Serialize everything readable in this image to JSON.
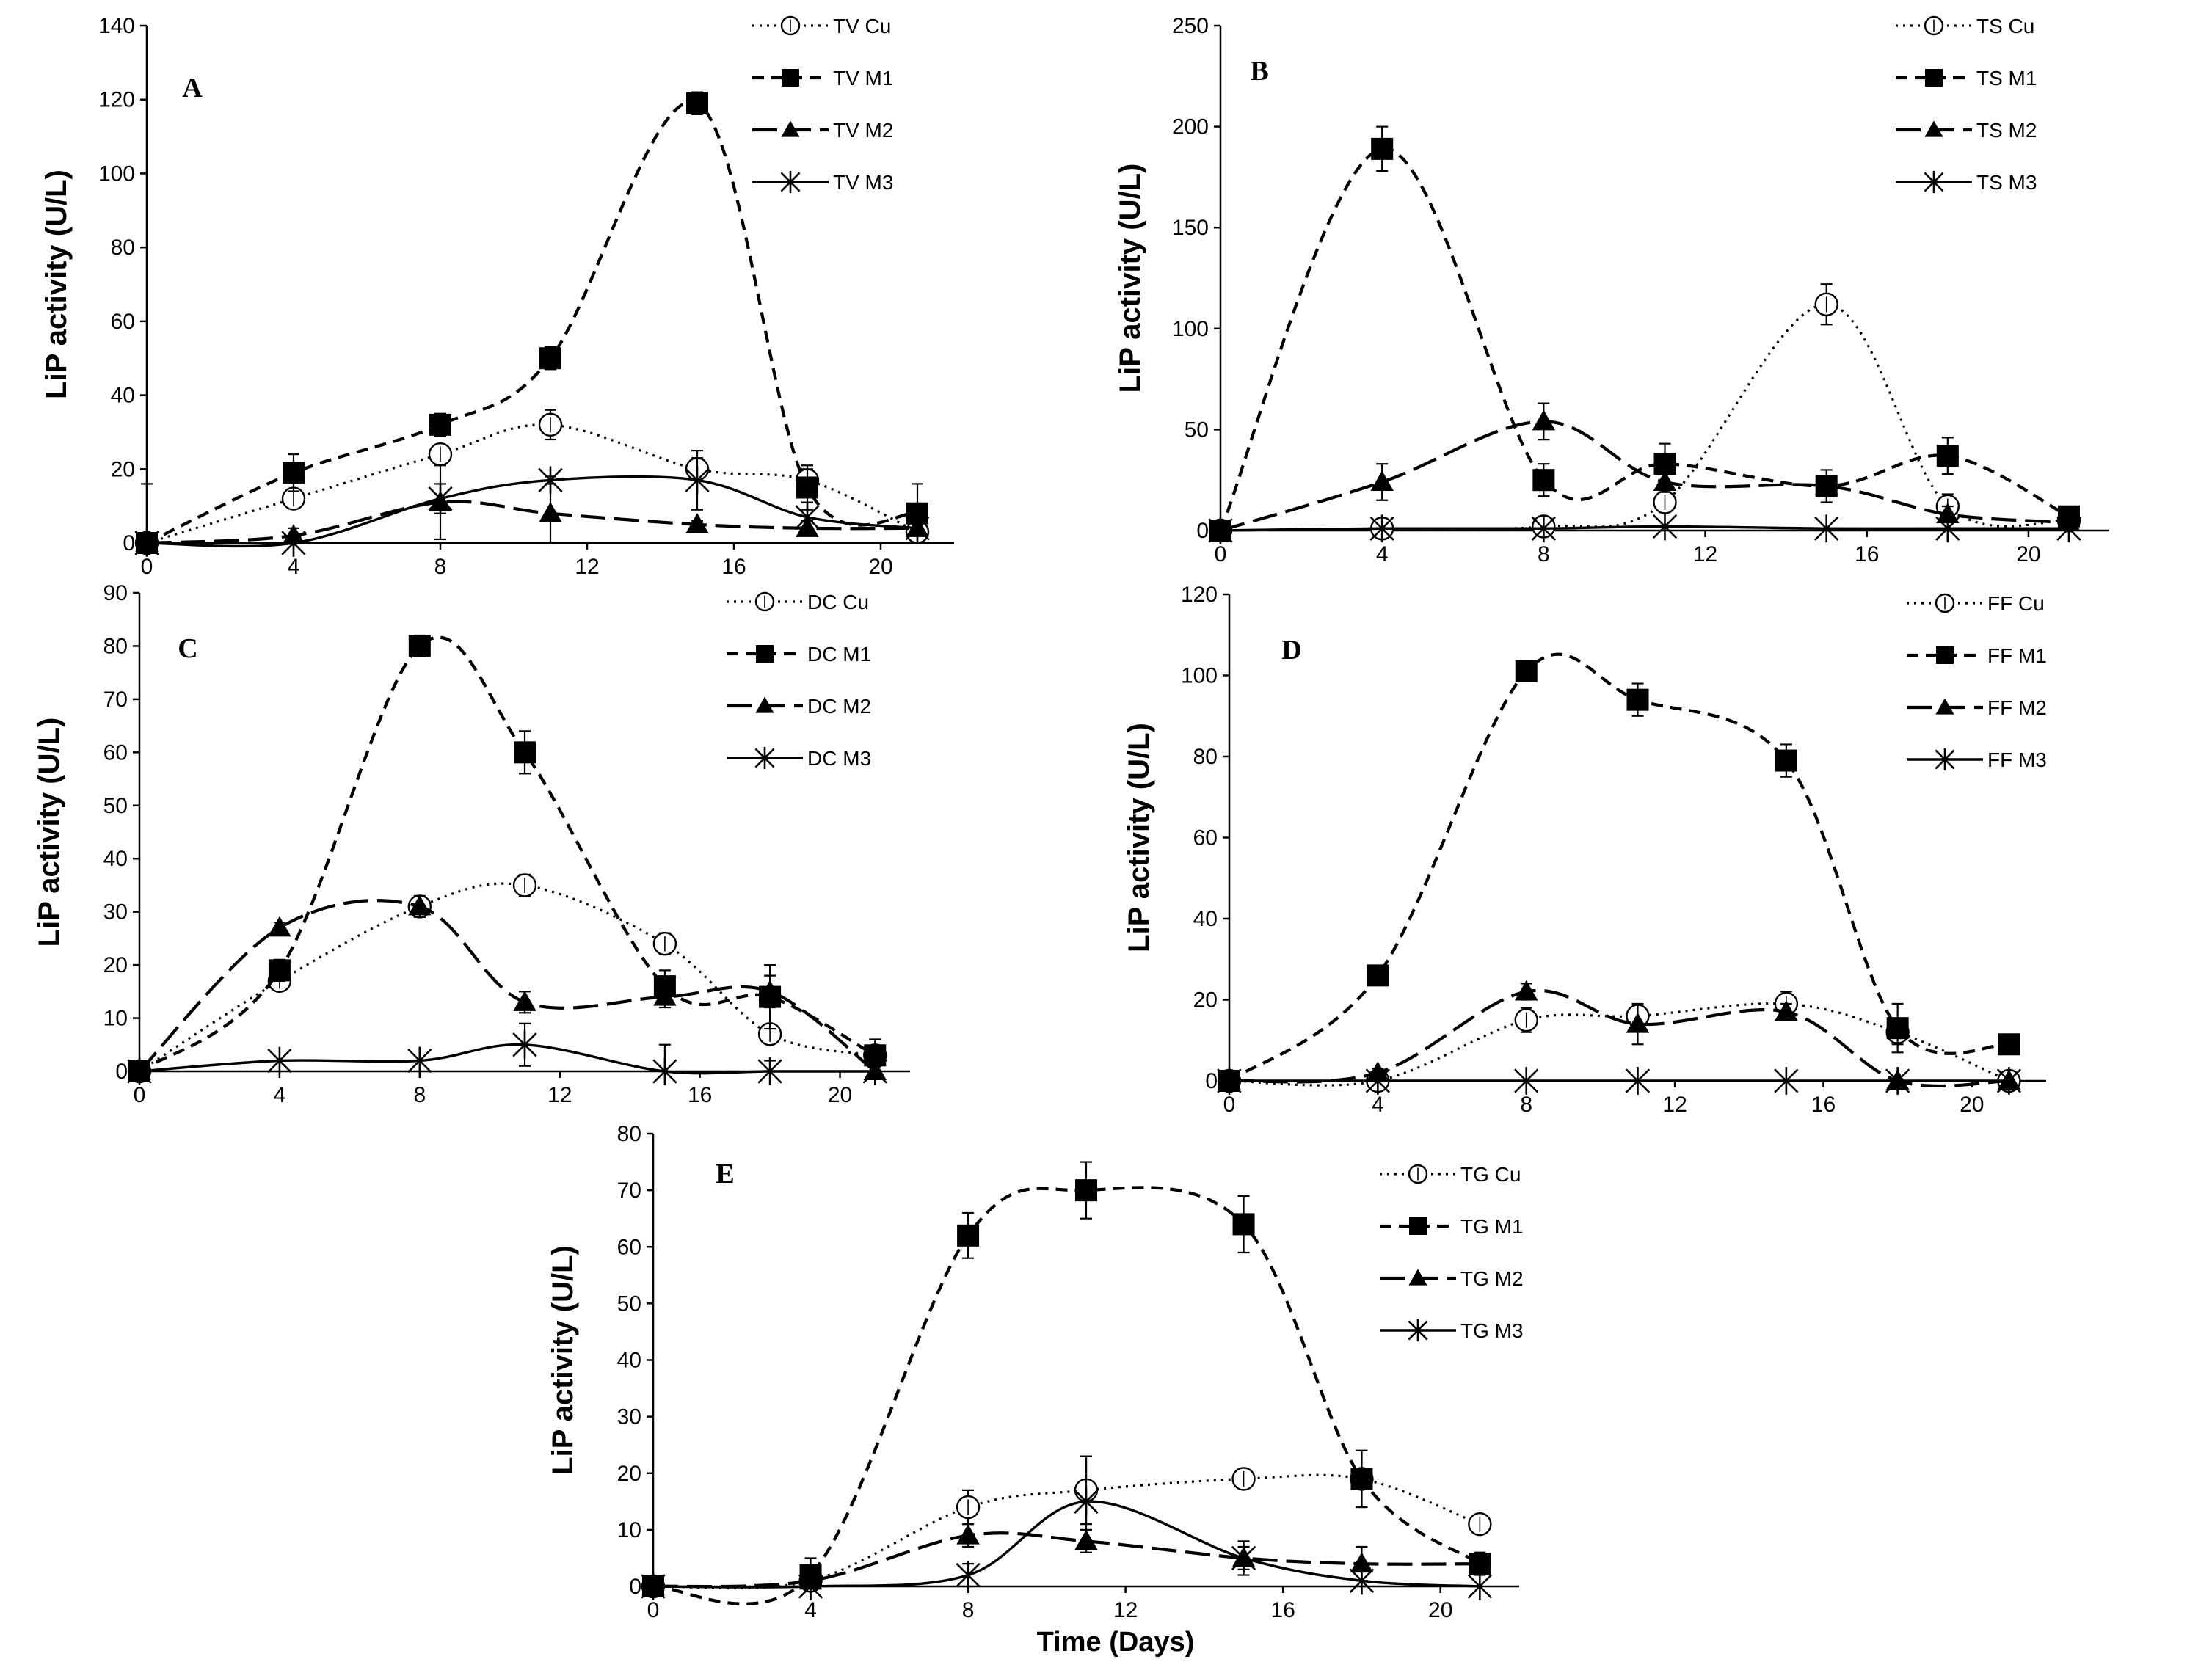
{
  "figure": {
    "x_axis_title": "Time (Days)"
  },
  "chart_data": [
    {
      "type": "line",
      "title": "A",
      "xlabel": "",
      "ylabel": "LiP activity (U/L)",
      "xlim": [
        0,
        22
      ],
      "ylim": [
        0,
        140
      ],
      "x_ticks": [
        0,
        4,
        8,
        12,
        16,
        20
      ],
      "y_ticks": [
        0,
        20,
        40,
        60,
        80,
        100,
        120,
        140
      ],
      "legend_position": "top-right",
      "x": [
        0,
        4,
        8,
        11,
        15,
        18,
        21
      ],
      "series": [
        {
          "name": "TV Cu",
          "values": [
            0,
            12,
            24,
            32,
            20,
            17,
            3
          ],
          "errors": [
            0,
            2,
            2,
            4,
            3,
            3,
            1
          ]
        },
        {
          "name": "TV M1",
          "values": [
            0,
            19,
            32,
            50,
            119,
            15,
            8
          ],
          "errors": [
            16,
            5,
            3,
            3,
            3,
            6,
            8
          ]
        },
        {
          "name": "TV M2",
          "values": [
            0,
            2,
            11,
            8,
            5,
            4,
            4
          ],
          "errors": [
            0,
            2,
            10,
            8,
            1,
            2,
            1
          ]
        },
        {
          "name": "TV M3",
          "values": [
            0,
            0,
            12,
            17,
            17,
            7,
            4
          ],
          "errors": [
            0,
            0,
            4,
            1,
            8,
            4,
            1
          ]
        }
      ]
    },
    {
      "type": "line",
      "title": "B",
      "xlabel": "",
      "ylabel": "LiP activity (U/L)",
      "xlim": [
        0,
        22
      ],
      "ylim": [
        0,
        250
      ],
      "x_ticks": [
        0,
        4,
        8,
        12,
        16,
        20
      ],
      "y_ticks": [
        0,
        50,
        100,
        150,
        200,
        250
      ],
      "legend_position": "top-right",
      "x": [
        0,
        4,
        8,
        11,
        15,
        18,
        21
      ],
      "series": [
        {
          "name": "TS Cu",
          "values": [
            0,
            1,
            2,
            14,
            112,
            12,
            5
          ],
          "errors": [
            0,
            1,
            2,
            5,
            10,
            6,
            2
          ]
        },
        {
          "name": "TS M1",
          "values": [
            0,
            189,
            25,
            33,
            22,
            37,
            7
          ],
          "errors": [
            0,
            11,
            8,
            10,
            8,
            9,
            3
          ]
        },
        {
          "name": "TS M2",
          "values": [
            0,
            24,
            54,
            24,
            22,
            8,
            4
          ],
          "errors": [
            0,
            9,
            9,
            5,
            4,
            4,
            2
          ]
        },
        {
          "name": "TS M3",
          "values": [
            0,
            1,
            1,
            2,
            1,
            1,
            1
          ],
          "errors": [
            0,
            0,
            0,
            0,
            0,
            0,
            0
          ]
        }
      ]
    },
    {
      "type": "line",
      "title": "C",
      "xlabel": "",
      "ylabel": "LiP activity (U/L)",
      "xlim": [
        0,
        22
      ],
      "ylim": [
        0,
        90
      ],
      "x_ticks": [
        0,
        4,
        8,
        12,
        16,
        20
      ],
      "y_ticks": [
        0,
        10,
        20,
        30,
        40,
        50,
        60,
        70,
        80,
        90
      ],
      "legend_position": "top-right",
      "x": [
        0,
        4,
        8,
        11,
        15,
        18,
        21
      ],
      "series": [
        {
          "name": "DC Cu",
          "values": [
            0,
            17,
            31,
            35,
            24,
            7,
            3
          ],
          "errors": [
            0,
            1,
            2,
            2,
            2,
            1,
            1
          ]
        },
        {
          "name": "DC M1",
          "values": [
            0,
            19,
            80,
            60,
            16,
            14,
            3
          ],
          "errors": [
            0,
            2,
            2,
            4,
            3,
            6,
            3
          ]
        },
        {
          "name": "DC M2",
          "values": [
            0,
            27,
            31,
            13,
            14,
            15,
            0
          ],
          "errors": [
            0,
            1,
            2,
            2,
            2,
            3,
            1
          ]
        },
        {
          "name": "DC M3",
          "values": [
            0,
            2,
            2,
            5,
            0,
            0,
            0
          ],
          "errors": [
            0,
            0,
            0,
            4,
            5,
            2,
            0
          ]
        }
      ]
    },
    {
      "type": "line",
      "title": "D",
      "xlabel": "",
      "ylabel": "LiP activity (U/L)",
      "xlim": [
        0,
        22
      ],
      "ylim": [
        0,
        120
      ],
      "x_ticks": [
        0,
        4,
        8,
        12,
        16,
        20
      ],
      "y_ticks": [
        0,
        20,
        40,
        60,
        80,
        100,
        120
      ],
      "legend_position": "top-right",
      "x": [
        0,
        4,
        8,
        11,
        15,
        18,
        21
      ],
      "series": [
        {
          "name": "FF Cu",
          "values": [
            0,
            0,
            15,
            16,
            19,
            12,
            0
          ],
          "errors": [
            0,
            0,
            3,
            3,
            3,
            3,
            0
          ]
        },
        {
          "name": "FF M1",
          "values": [
            0,
            26,
            101,
            94,
            79,
            13,
            9
          ],
          "errors": [
            0,
            2,
            2,
            4,
            4,
            6,
            1
          ]
        },
        {
          "name": "FF M2",
          "values": [
            0,
            2,
            22,
            14,
            17,
            0,
            0
          ],
          "errors": [
            0,
            1,
            2,
            5,
            2,
            0,
            0
          ]
        },
        {
          "name": "FF M3",
          "values": [
            0,
            0,
            0,
            0,
            0,
            0,
            0
          ],
          "errors": [
            0,
            0,
            0,
            0,
            0,
            0,
            0
          ]
        }
      ]
    },
    {
      "type": "line",
      "title": "E",
      "xlabel": "Time (Days)",
      "ylabel": "LiP activity (U/L)",
      "xlim": [
        0,
        22
      ],
      "ylim": [
        0,
        80
      ],
      "x_ticks": [
        0,
        4,
        8,
        12,
        16,
        20
      ],
      "y_ticks": [
        0,
        10,
        20,
        30,
        40,
        50,
        60,
        70,
        80
      ],
      "legend_position": "top-right",
      "x": [
        0,
        4,
        8,
        11,
        15,
        18,
        21
      ],
      "series": [
        {
          "name": "TG Cu",
          "values": [
            0,
            1,
            14,
            17,
            19,
            19,
            11
          ],
          "errors": [
            0,
            1,
            3,
            6,
            1,
            5,
            1
          ]
        },
        {
          "name": "TG M1",
          "values": [
            0,
            2,
            62,
            70,
            64,
            19,
            4
          ],
          "errors": [
            0,
            3,
            4,
            5,
            5,
            5,
            2
          ]
        },
        {
          "name": "TG M2",
          "values": [
            0,
            1,
            9,
            8,
            5,
            4,
            4
          ],
          "errors": [
            0,
            1,
            2,
            2,
            2,
            3,
            1
          ]
        },
        {
          "name": "TG M3",
          "values": [
            0,
            0,
            2,
            15,
            5,
            1,
            0
          ],
          "errors": [
            0,
            0,
            2,
            8,
            3,
            2,
            0
          ]
        }
      ]
    }
  ]
}
